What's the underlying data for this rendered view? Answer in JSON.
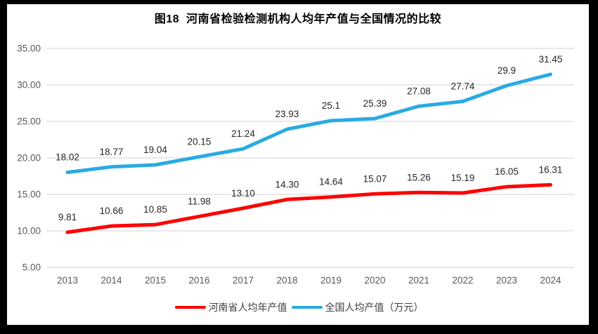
{
  "frame": {
    "border_color": "#000000",
    "paper_color": "#ffffff"
  },
  "chart_data": {
    "type": "line",
    "title": "图18  河南省检验检测机构人均年产值与全国情况的比较",
    "categories": [
      "2013",
      "2014",
      "2015",
      "2016",
      "2017",
      "2018",
      "2019",
      "2020",
      "2021",
      "2022",
      "2023",
      "2024"
    ],
    "xlabel": "",
    "ylabel": "",
    "ylim": [
      5,
      35
    ],
    "y_ticks": [
      "5.00",
      "10.00",
      "15.00",
      "20.00",
      "25.00",
      "30.00",
      "35.00"
    ],
    "grid": true,
    "legend_position": "bottom",
    "gridline_color": "#d9d9d9",
    "axis_text_color": "#595959",
    "data_label_color": "#262626",
    "series": [
      {
        "name": "河南省人均年产值",
        "color": "#fe0000",
        "values": [
          9.81,
          10.66,
          10.85,
          11.98,
          13.1,
          14.3,
          14.64,
          15.07,
          15.26,
          15.19,
          16.05,
          16.31
        ],
        "labels": [
          "9.81",
          "10.66",
          "10.85",
          "11.98",
          "13.10",
          "14.30",
          "14.64",
          "15.07",
          "15.26",
          "15.19",
          "16.05",
          "16.31"
        ]
      },
      {
        "name": "全国人均产值（万元）",
        "color": "#29abe2",
        "values": [
          18.02,
          18.77,
          19.04,
          20.15,
          21.24,
          23.93,
          25.1,
          25.39,
          27.08,
          27.74,
          29.9,
          31.45
        ],
        "labels": [
          "18.02",
          "18.77",
          "19.04",
          "20.15",
          "21.24",
          "23.93",
          "25.1",
          "25.39",
          "27.08",
          "27.74",
          "29.9",
          "31.45"
        ]
      }
    ]
  }
}
